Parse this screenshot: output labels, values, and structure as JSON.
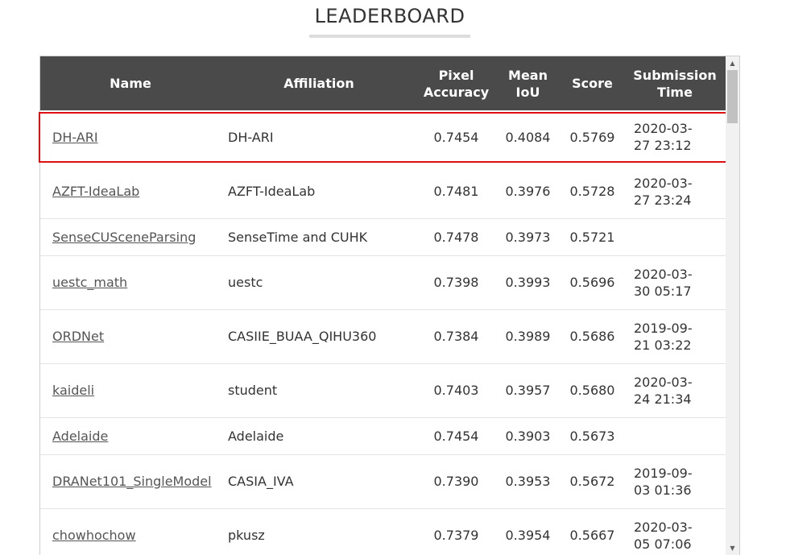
{
  "title": "LEADERBOARD",
  "columns": {
    "name": "Name",
    "affiliation": "Affiliation",
    "pixel_accuracy_1": "Pixel",
    "pixel_accuracy_2": "Accuracy",
    "mean_iou_1": "Mean",
    "mean_iou_2": "IoU",
    "score": "Score",
    "submission_1": "Submission",
    "submission_2": "Time"
  },
  "rows": [
    {
      "name": "DH-ARI",
      "affiliation": "DH-ARI",
      "pixel_accuracy": "0.7454",
      "mean_iou": "0.4084",
      "score": "0.5769",
      "date": "2020-03-",
      "time": "27 23:12"
    },
    {
      "name": "AZFT-IdeaLab",
      "affiliation": "AZFT-IdeaLab",
      "pixel_accuracy": "0.7481",
      "mean_iou": "0.3976",
      "score": "0.5728",
      "date": "2020-03-",
      "time": "27 23:24"
    },
    {
      "name": "SenseCUSceneParsing",
      "affiliation": "SenseTime and CUHK",
      "pixel_accuracy": "0.7478",
      "mean_iou": "0.3973",
      "score": "0.5721",
      "date": "",
      "time": ""
    },
    {
      "name": "uestc_math",
      "affiliation": "uestc",
      "pixel_accuracy": "0.7398",
      "mean_iou": "0.3993",
      "score": "0.5696",
      "date": "2020-03-",
      "time": "30 05:17"
    },
    {
      "name": "ORDNet",
      "affiliation": "CASIIE_BUAA_QIHU360",
      "pixel_accuracy": "0.7384",
      "mean_iou": "0.3989",
      "score": "0.5686",
      "date": "2019-09-",
      "time": "21 03:22"
    },
    {
      "name": "kaideli",
      "affiliation": "student",
      "pixel_accuracy": "0.7403",
      "mean_iou": "0.3957",
      "score": "0.5680",
      "date": "2020-03-",
      "time": "24 21:34"
    },
    {
      "name": "Adelaide",
      "affiliation": "Adelaide",
      "pixel_accuracy": "0.7454",
      "mean_iou": "0.3903",
      "score": "0.5673",
      "date": "",
      "time": ""
    },
    {
      "name": "DRANet101_SingleModel",
      "affiliation": "CASIA_IVA",
      "pixel_accuracy": "0.7390",
      "mean_iou": "0.3953",
      "score": "0.5672",
      "date": "2019-09-",
      "time": "03 01:36"
    },
    {
      "name": "chowhochow",
      "affiliation": "pkusz",
      "pixel_accuracy": "0.7379",
      "mean_iou": "0.3954",
      "score": "0.5667",
      "date": "2020-03-",
      "time": "05 07:06"
    }
  ],
  "colors": {
    "header_bg": "#4a4a4a",
    "highlight_border": "#e01010",
    "link": "#555555"
  },
  "icons": {
    "scroll_up": "▲",
    "scroll_down": "▼"
  }
}
